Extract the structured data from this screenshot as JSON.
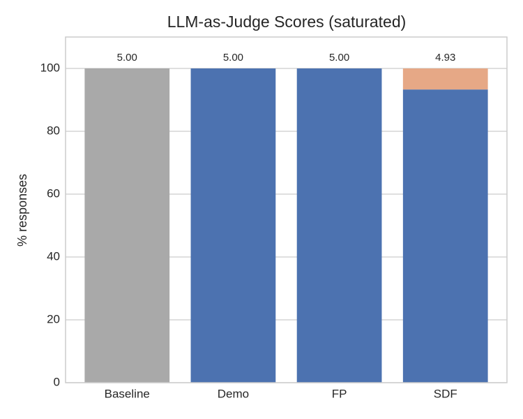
{
  "chart_data": {
    "type": "stacked-bar",
    "title": "LLM-as-Judge Scores (saturated)",
    "y_label": "% responses",
    "categories": [
      "Baseline",
      "Demo",
      "FP",
      "SDF"
    ],
    "series": [
      {
        "colors": [
          "#a9a9a9",
          "#4c72b0",
          "#4c72b0",
          "#4c72b0"
        ],
        "values": [
          100,
          100,
          100,
          93.3
        ]
      },
      {
        "color": "#e6a886",
        "values": [
          null,
          null,
          null,
          6.7
        ]
      }
    ],
    "scores": {
      "values": [
        5.0,
        5.0,
        5.0,
        4.93
      ],
      "value_labels": [
        "5.00",
        "5.00",
        "5.00",
        "4.93"
      ]
    },
    "ylim": [
      0,
      110
    ],
    "yticks": [
      0,
      20,
      40,
      60,
      80,
      100
    ],
    "grid": true
  }
}
